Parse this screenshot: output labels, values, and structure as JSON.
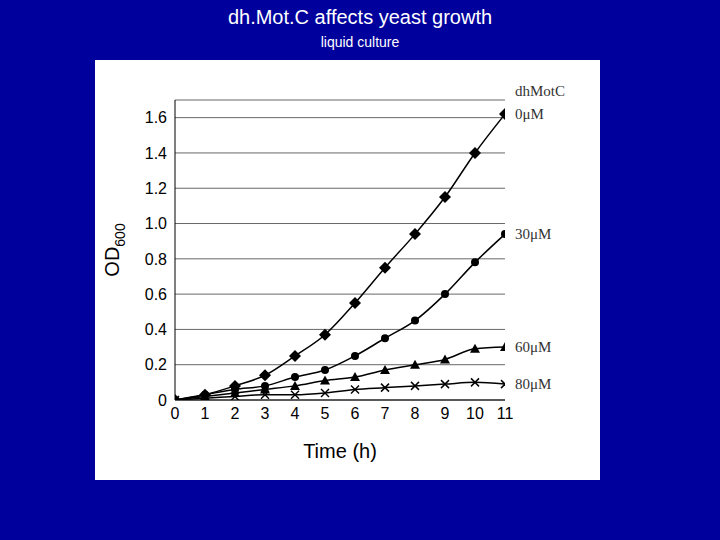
{
  "chart_data": {
    "type": "line",
    "title": "dh.Mot.C affects yeast growth",
    "subtitle": "liquid culture",
    "x_label": "Time (h)",
    "y_label": "OD600",
    "legend_title": "dhMotC",
    "x": [
      0,
      1,
      2,
      3,
      4,
      5,
      6,
      7,
      8,
      9,
      10,
      11
    ],
    "xlim": [
      0,
      11
    ],
    "xticks": [
      0,
      1,
      2,
      3,
      4,
      5,
      6,
      7,
      8,
      9,
      10,
      11
    ],
    "ylim": [
      0,
      1.7
    ],
    "yticks": [
      0,
      0.2,
      0.4,
      0.6,
      0.8,
      {
        "value": 1,
        "label": "1.0"
      },
      1.2,
      1.4,
      1.6
    ],
    "grid": true,
    "series": [
      {
        "name": "0μM",
        "color": "#000000",
        "marker": "diamond",
        "line_style": "solid",
        "values": [
          0,
          0.03,
          0.08,
          0.14,
          0.25,
          0.37,
          0.55,
          0.75,
          0.94,
          1.15,
          1.4,
          1.62
        ]
      },
      {
        "name": "30μM",
        "color": "#000000",
        "marker": "circle",
        "line_style": "solid",
        "values": [
          0,
          0.03,
          0.06,
          0.08,
          0.13,
          0.17,
          0.25,
          0.35,
          0.45,
          0.6,
          0.78,
          0.94
        ]
      },
      {
        "name": "60μM",
        "color": "#000000",
        "marker": "triangle",
        "line_style": "solid",
        "values": [
          0,
          0.02,
          0.04,
          0.06,
          0.08,
          0.11,
          0.13,
          0.17,
          0.2,
          0.23,
          0.29,
          0.3
        ]
      },
      {
        "name": "80μM",
        "color": "#000000",
        "marker": "cross",
        "line_style": "solid",
        "values": [
          0,
          0.01,
          0.02,
          0.03,
          0.03,
          0.04,
          0.06,
          0.07,
          0.08,
          0.09,
          0.1,
          0.09
        ]
      }
    ]
  }
}
